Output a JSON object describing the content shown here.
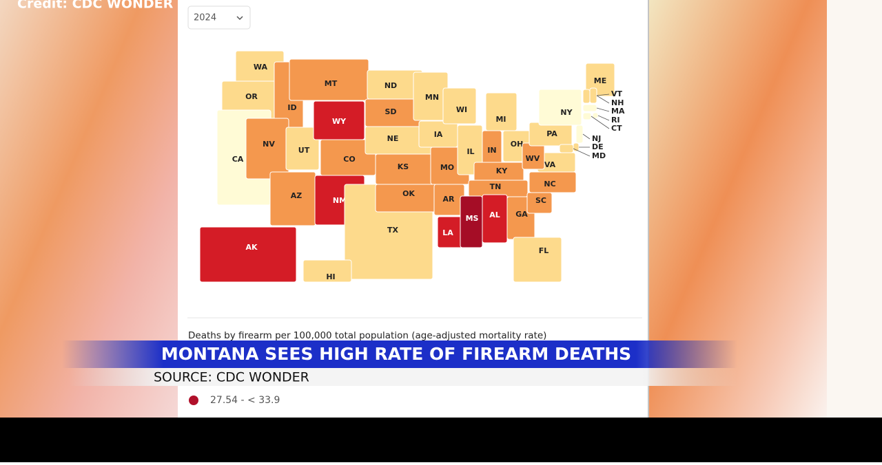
{
  "credit": "Credit: CDC WONDER",
  "year_select": "2024",
  "map": {
    "states": [
      {
        "label": "WA",
        "color": "#fdda8c"
      },
      {
        "label": "OR",
        "color": "#fdda8c"
      },
      {
        "label": "CA",
        "color": "#fffbd6"
      },
      {
        "label": "ID",
        "color": "#f4984e"
      },
      {
        "label": "MT",
        "color": "#f4984e"
      },
      {
        "label": "NV",
        "color": "#f4984e"
      },
      {
        "label": "UT",
        "color": "#fdda8c"
      },
      {
        "label": "AZ",
        "color": "#f4984e"
      },
      {
        "label": "WY",
        "color": "#d41c26"
      },
      {
        "label": "CO",
        "color": "#f4984e"
      },
      {
        "label": "NM",
        "color": "#d41c26"
      },
      {
        "label": "ND",
        "color": "#fdda8c"
      },
      {
        "label": "SD",
        "color": "#f4984e"
      },
      {
        "label": "NE",
        "color": "#fdda8c"
      },
      {
        "label": "TX",
        "color": "#fdda8c"
      },
      {
        "label": "KS",
        "color": "#f4984e"
      },
      {
        "label": "OK",
        "color": "#f4984e"
      },
      {
        "label": "MN",
        "color": "#fdda8c"
      },
      {
        "label": "IA",
        "color": "#fdda8c"
      },
      {
        "label": "MO",
        "color": "#f4984e"
      },
      {
        "label": "AR",
        "color": "#f4984e"
      },
      {
        "label": "LA",
        "color": "#d41c26"
      },
      {
        "label": "WI",
        "color": "#fdda8c"
      },
      {
        "label": "IL",
        "color": "#fdda8c"
      },
      {
        "label": "MI",
        "color": "#fdda8c"
      },
      {
        "label": "IN",
        "color": "#f4984e"
      },
      {
        "label": "OH",
        "color": "#fdda8c"
      },
      {
        "label": "KY",
        "color": "#f4984e"
      },
      {
        "label": "TN",
        "color": "#f4984e"
      },
      {
        "label": "MS",
        "color": "#a50d26"
      },
      {
        "label": "AL",
        "color": "#d41c26"
      },
      {
        "label": "GA",
        "color": "#f4984e"
      },
      {
        "label": "FL",
        "color": "#fdda8c"
      },
      {
        "label": "SC",
        "color": "#f4984e"
      },
      {
        "label": "NC",
        "color": "#f4984e"
      },
      {
        "label": "VA",
        "color": "#fdda8c"
      },
      {
        "label": "WV",
        "color": "#f4984e"
      },
      {
        "label": "PA",
        "color": "#fdda8c"
      },
      {
        "label": "NY",
        "color": "#fffbd6"
      },
      {
        "label": "ME",
        "color": "#fdda8c"
      },
      {
        "label": "AK",
        "color": "#d41c26"
      },
      {
        "label": "HI",
        "color": "#fdda8c"
      },
      {
        "label": "VT",
        "color": "#fdda8c"
      },
      {
        "label": "NH",
        "color": "#fdda8c"
      },
      {
        "label": "MA",
        "color": "#fffbd6"
      },
      {
        "label": "RI",
        "color": "#fffbd6"
      },
      {
        "label": "CT",
        "color": "#fffbd6"
      },
      {
        "label": "NJ",
        "color": "#fffbd6"
      },
      {
        "label": "DE",
        "color": "#fdda8c"
      },
      {
        "label": "MD",
        "color": "#fdda8c"
      }
    ]
  },
  "legend": {
    "title": "Deaths by firearm per 100,000 total population (age-adjusted mortality rate)",
    "items": [
      {
        "label": "27.54 - < 33.9",
        "color": "#b0102a"
      }
    ]
  },
  "banner": {
    "headline": "MONTANA SEES HIGH RATE OF FIREARM DEATHS",
    "source": "SOURCE: CDC WONDER"
  }
}
